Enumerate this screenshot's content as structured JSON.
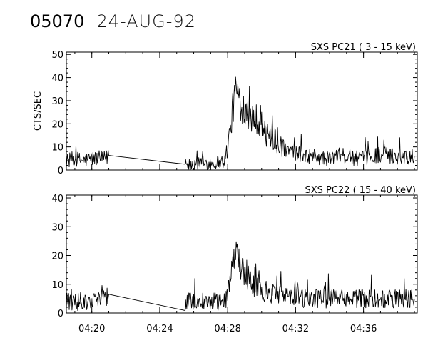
{
  "header": {
    "id": "05070",
    "date": "24-AUG-92"
  },
  "ylabel": "CTS/SEC",
  "chart_data": [
    {
      "type": "line",
      "title": "SXS PC21  (  3 - 15 keV)",
      "ylabel": "CTS/SEC",
      "ylim": [
        0,
        51
      ],
      "yticks": [
        0,
        10,
        20,
        30,
        40,
        50
      ],
      "xlim": [
        "04:18:30",
        "04:39:10"
      ],
      "xticks": [
        "04:20",
        "04:24",
        "04:28",
        "04:32",
        "04:36"
      ],
      "grid": false,
      "series": [
        {
          "x": [
            "04:18:30",
            "04:19:00",
            "04:19:30",
            "04:20:00",
            "04:20:30",
            "04:20:50",
            "04:21:00",
            "04:25:30",
            "04:25:35",
            "04:26:00",
            "04:26:30",
            "04:27:00",
            "04:27:30",
            "04:27:50",
            "04:28:00",
            "04:28:10",
            "04:28:20",
            "04:28:30",
            "04:28:40",
            "04:28:50",
            "04:29:00",
            "04:29:15",
            "04:29:30",
            "04:29:45",
            "04:30:00",
            "04:30:15",
            "04:30:30",
            "04:30:45",
            "04:31:00",
            "04:31:30",
            "04:32:00",
            "04:32:30",
            "04:33:00",
            "04:33:30",
            "04:34:00",
            "04:34:30",
            "04:35:00",
            "04:35:30",
            "04:36:00",
            "04:36:30",
            "04:37:00",
            "04:37:30",
            "04:38:00",
            "04:38:30",
            "04:39:00"
          ],
          "y": [
            4,
            5,
            4,
            5,
            5,
            5,
            6.3,
            5,
            2,
            2.5,
            3,
            3,
            3.5,
            4,
            10,
            18,
            28,
            36,
            30,
            28,
            27,
            24,
            23,
            22,
            20,
            15,
            14,
            12,
            11,
            8,
            7,
            6,
            6,
            5,
            5,
            6,
            6,
            5,
            5,
            6,
            7,
            6,
            6,
            6,
            6
          ],
          "noise": 6
        }
      ]
    },
    {
      "type": "line",
      "title": "SXS PC22  ( 15 - 40 keV)",
      "ylabel": "",
      "ylim": [
        0,
        41
      ],
      "yticks": [
        0,
        10,
        20,
        30,
        40
      ],
      "xlim": [
        "04:18:30",
        "04:39:10"
      ],
      "xticks": [
        "04:20",
        "04:24",
        "04:28",
        "04:32",
        "04:36"
      ],
      "grid": false,
      "series": [
        {
          "x": [
            "04:18:30",
            "04:19:00",
            "04:19:30",
            "04:20:00",
            "04:20:30",
            "04:20:50",
            "04:21:00",
            "04:25:30",
            "04:25:35",
            "04:26:00",
            "04:26:30",
            "04:27:00",
            "04:27:30",
            "04:27:50",
            "04:28:00",
            "04:28:10",
            "04:28:20",
            "04:28:30",
            "04:28:40",
            "04:28:50",
            "04:29:00",
            "04:29:15",
            "04:29:30",
            "04:29:45",
            "04:30:00",
            "04:30:30",
            "04:31:00",
            "04:31:30",
            "04:32:00",
            "04:32:30",
            "04:33:00",
            "04:33:30",
            "04:34:00",
            "04:34:30",
            "04:35:00",
            "04:35:30",
            "04:36:00",
            "04:36:30",
            "04:37:00",
            "04:37:30",
            "04:38:00",
            "04:38:30",
            "04:39:00"
          ],
          "y": [
            4,
            4,
            4,
            4,
            5,
            5,
            6.5,
            2,
            4,
            4,
            4,
            4,
            4,
            4,
            7,
            12,
            17,
            20,
            17,
            16,
            14,
            12,
            10,
            9,
            8,
            7,
            6,
            6,
            5,
            5,
            5,
            5,
            5,
            5,
            5,
            5,
            5,
            5,
            5,
            5,
            5,
            5,
            5
          ],
          "noise": 6
        }
      ]
    }
  ]
}
